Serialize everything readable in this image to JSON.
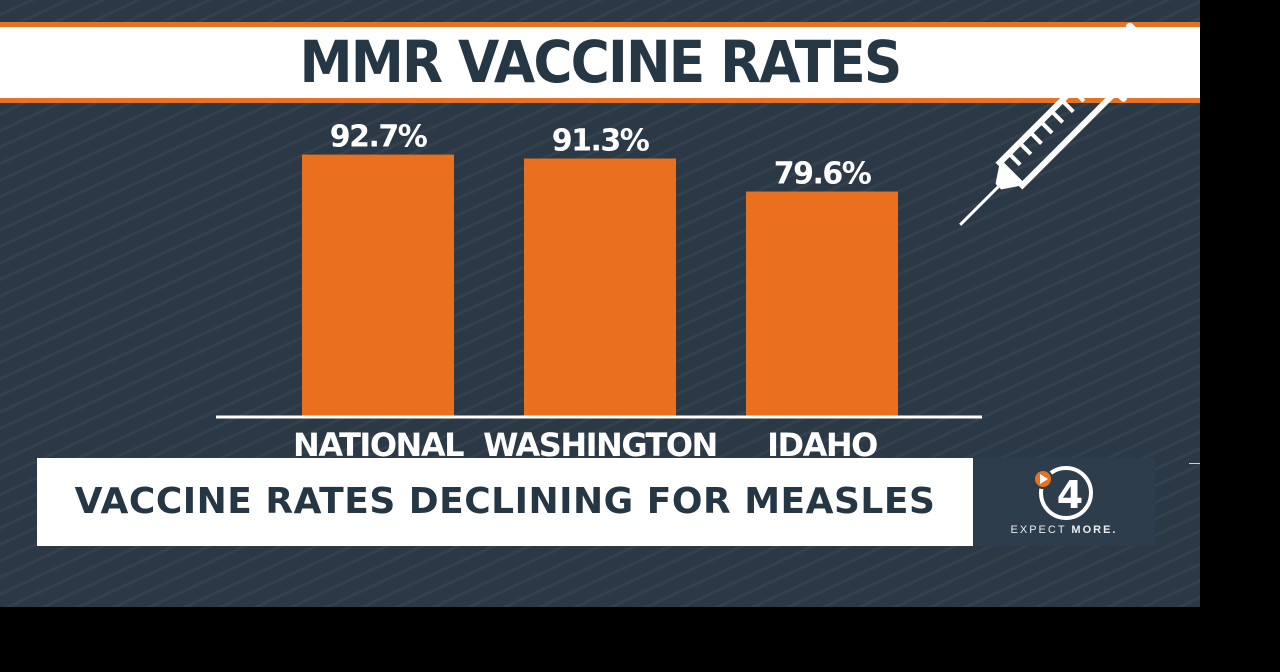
{
  "title": "MMR VACCINE RATES",
  "headline": "VACCINE RATES DECLINING FOR MEASLES",
  "logo": {
    "number": "4",
    "tagline_light": "EXPECT",
    "tagline_bold": "MORE."
  },
  "colors": {
    "bar": "#e8701f",
    "background": "#2b3845",
    "text_dark": "#253645"
  },
  "icons": {
    "syringe": "syringe-icon",
    "logo": "play-4-logo-icon"
  },
  "chart_data": {
    "type": "bar",
    "title": "MMR VACCINE RATES",
    "categories": [
      "NATIONAL",
      "WASHINGTON",
      "IDAHO"
    ],
    "values": [
      92.7,
      91.3,
      79.6
    ],
    "value_labels": [
      "92.7%",
      "91.3%",
      "79.6%"
    ],
    "xlabel": "",
    "ylabel": "",
    "ylim": [
      0,
      100
    ],
    "grid": false,
    "legend": "none"
  }
}
